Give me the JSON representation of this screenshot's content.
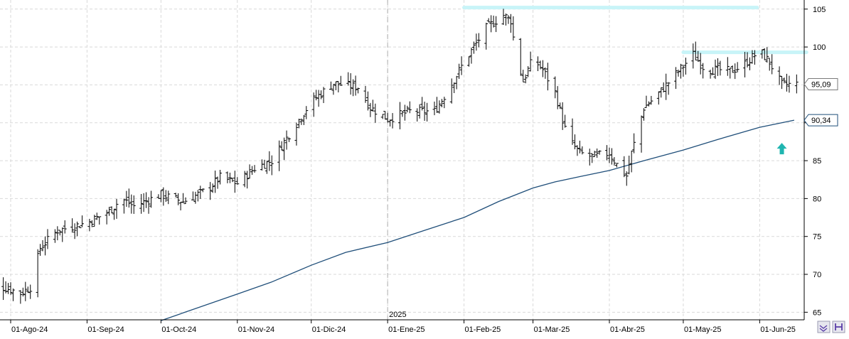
{
  "chart_data": {
    "type": "ohlc",
    "period_marker": "2025",
    "x_tick_labels": [
      "01-Ago-24",
      "01-Sep-24",
      "01-Oct-24",
      "01-Nov-24",
      "01-Dic-24",
      "01-Ene-25",
      "01-Feb-25",
      "01-Mar-25",
      "01-Abr-25",
      "01-May-25",
      "01-Jun-25"
    ],
    "y_ticks": [
      65,
      70,
      75,
      80,
      85,
      90,
      95,
      100,
      105
    ],
    "y_tick_labels": [
      "65",
      "70",
      "75",
      "80",
      "85",
      "90",
      "95",
      "100",
      "105"
    ],
    "ylim": [
      64,
      106.2
    ],
    "grid": true,
    "last_price": 95.09,
    "last_price_label": "95,09",
    "moving_average": {
      "last_value": 90.34,
      "last_value_label": "90,34",
      "color": "#1f4e79",
      "points": [
        [
          "2024-10-01",
          63.9
        ],
        [
          "2024-11-01",
          67.4
        ],
        [
          "2024-11-15",
          69.0
        ],
        [
          "2024-12-01",
          71.2
        ],
        [
          "2024-12-15",
          72.9
        ],
        [
          "2025-01-01",
          74.2
        ],
        [
          "2025-01-15",
          75.7
        ],
        [
          "2025-02-01",
          77.5
        ],
        [
          "2025-02-15",
          79.6
        ],
        [
          "2025-03-01",
          81.4
        ],
        [
          "2025-03-10",
          82.2
        ],
        [
          "2025-03-20",
          82.9
        ],
        [
          "2025-04-01",
          83.7
        ],
        [
          "2025-04-15",
          85.0
        ],
        [
          "2025-05-01",
          86.4
        ],
        [
          "2025-05-15",
          87.8
        ],
        [
          "2025-06-01",
          89.4
        ],
        [
          "2025-06-15",
          90.34
        ]
      ]
    },
    "resistance_lines": [
      {
        "from": "2025-02-01",
        "to": "2025-05-31",
        "value": 105.2,
        "color": "#c8f4f8"
      },
      {
        "from": "2025-05-01",
        "to": "2025-06-20",
        "value": 99.3,
        "color": "#c8f4f8"
      }
    ],
    "signal": {
      "type": "up-arrow",
      "date": "2025-06-10",
      "value": 86.5,
      "color": "#1fb5b0"
    },
    "anchors": [
      [
        "2024-07-21",
        69.0
      ],
      [
        "2024-08-01",
        68.0
      ],
      [
        "2024-08-05",
        67.5
      ],
      [
        "2024-08-09",
        68.3
      ],
      [
        "2024-08-13",
        73.5
      ],
      [
        "2024-08-20",
        75.8
      ],
      [
        "2024-09-01",
        76.8
      ],
      [
        "2024-09-10",
        78.3
      ],
      [
        "2024-09-15",
        80.0
      ],
      [
        "2024-09-20",
        79.0
      ],
      [
        "2024-10-01",
        80.5
      ],
      [
        "2024-10-10",
        79.6
      ],
      [
        "2024-10-20",
        81.2
      ],
      [
        "2024-10-25",
        82.8
      ],
      [
        "2024-11-01",
        82.0
      ],
      [
        "2024-11-08",
        84.0
      ],
      [
        "2024-11-15",
        85.0
      ],
      [
        "2024-11-20",
        87.5
      ],
      [
        "2024-12-01",
        92.8
      ],
      [
        "2024-12-10",
        95.2
      ],
      [
        "2024-12-20",
        94.7
      ],
      [
        "2024-12-25",
        92.0
      ],
      [
        "2025-01-01",
        90.5
      ],
      [
        "2025-01-10",
        91.5
      ],
      [
        "2025-01-20",
        91.5
      ],
      [
        "2025-01-25",
        94.0
      ],
      [
        "2025-02-01",
        98.0
      ],
      [
        "2025-02-10",
        102.5
      ],
      [
        "2025-02-17",
        104.2
      ],
      [
        "2025-02-20",
        103.5
      ],
      [
        "2025-02-22",
        99.0
      ],
      [
        "2025-02-25",
        95.5
      ],
      [
        "2025-03-01",
        98.5
      ],
      [
        "2025-03-05",
        97.0
      ],
      [
        "2025-03-10",
        94.0
      ],
      [
        "2025-03-15",
        88.0
      ],
      [
        "2025-03-20",
        86.0
      ],
      [
        "2025-03-25",
        85.5
      ],
      [
        "2025-04-01",
        86.0
      ],
      [
        "2025-04-05",
        84.0
      ],
      [
        "2025-04-08",
        83.0
      ],
      [
        "2025-04-10",
        86.0
      ],
      [
        "2025-04-15",
        92.0
      ],
      [
        "2025-04-20",
        93.5
      ],
      [
        "2025-05-01",
        97.5
      ],
      [
        "2025-05-05",
        99.0
      ],
      [
        "2025-05-10",
        97.0
      ],
      [
        "2025-05-15",
        97.0
      ],
      [
        "2025-05-20",
        96.8
      ],
      [
        "2025-05-25",
        97.5
      ],
      [
        "2025-06-01",
        99.5
      ],
      [
        "2025-06-05",
        98.0
      ],
      [
        "2025-06-10",
        95.0
      ],
      [
        "2025-06-16",
        95.09
      ]
    ]
  },
  "ui": {
    "button_colors": {
      "bg": "#e6e6ee",
      "border": "#9a9ab2",
      "accent": "#5a3ea8"
    },
    "axis_color": "#000000",
    "grid_color": "#d9d9d9",
    "ohlc_color": "#000000"
  }
}
